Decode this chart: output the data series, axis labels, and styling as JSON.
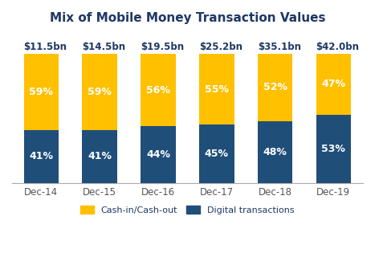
{
  "title": "Mix of Mobile Money Transaction Values",
  "categories": [
    "Dec-14",
    "Dec-15",
    "Dec-16",
    "Dec-17",
    "Dec-18",
    "Dec-19"
  ],
  "total_labels": [
    "$11.5bn",
    "$14.5bn",
    "$19.5bn",
    "$25.2bn",
    "$35.1bn",
    "$42.0bn"
  ],
  "digital_pct": [
    41,
    41,
    44,
    45,
    48,
    53
  ],
  "cashout_pct": [
    59,
    59,
    56,
    55,
    52,
    47
  ],
  "color_digital": "#1f4e79",
  "color_cashout": "#ffc000",
  "legend_digital": "Digital transactions",
  "legend_cashout": "Cash-in/Cash-out",
  "title_color": "#1f3864",
  "label_color_dark": "#1f3864",
  "background_color": "#ffffff",
  "bar_width": 0.6,
  "ylim_max": 100,
  "title_fontsize": 11,
  "pct_fontsize": 9,
  "total_label_fontsize": 8.5,
  "xtick_fontsize": 8.5,
  "legend_fontsize": 8
}
